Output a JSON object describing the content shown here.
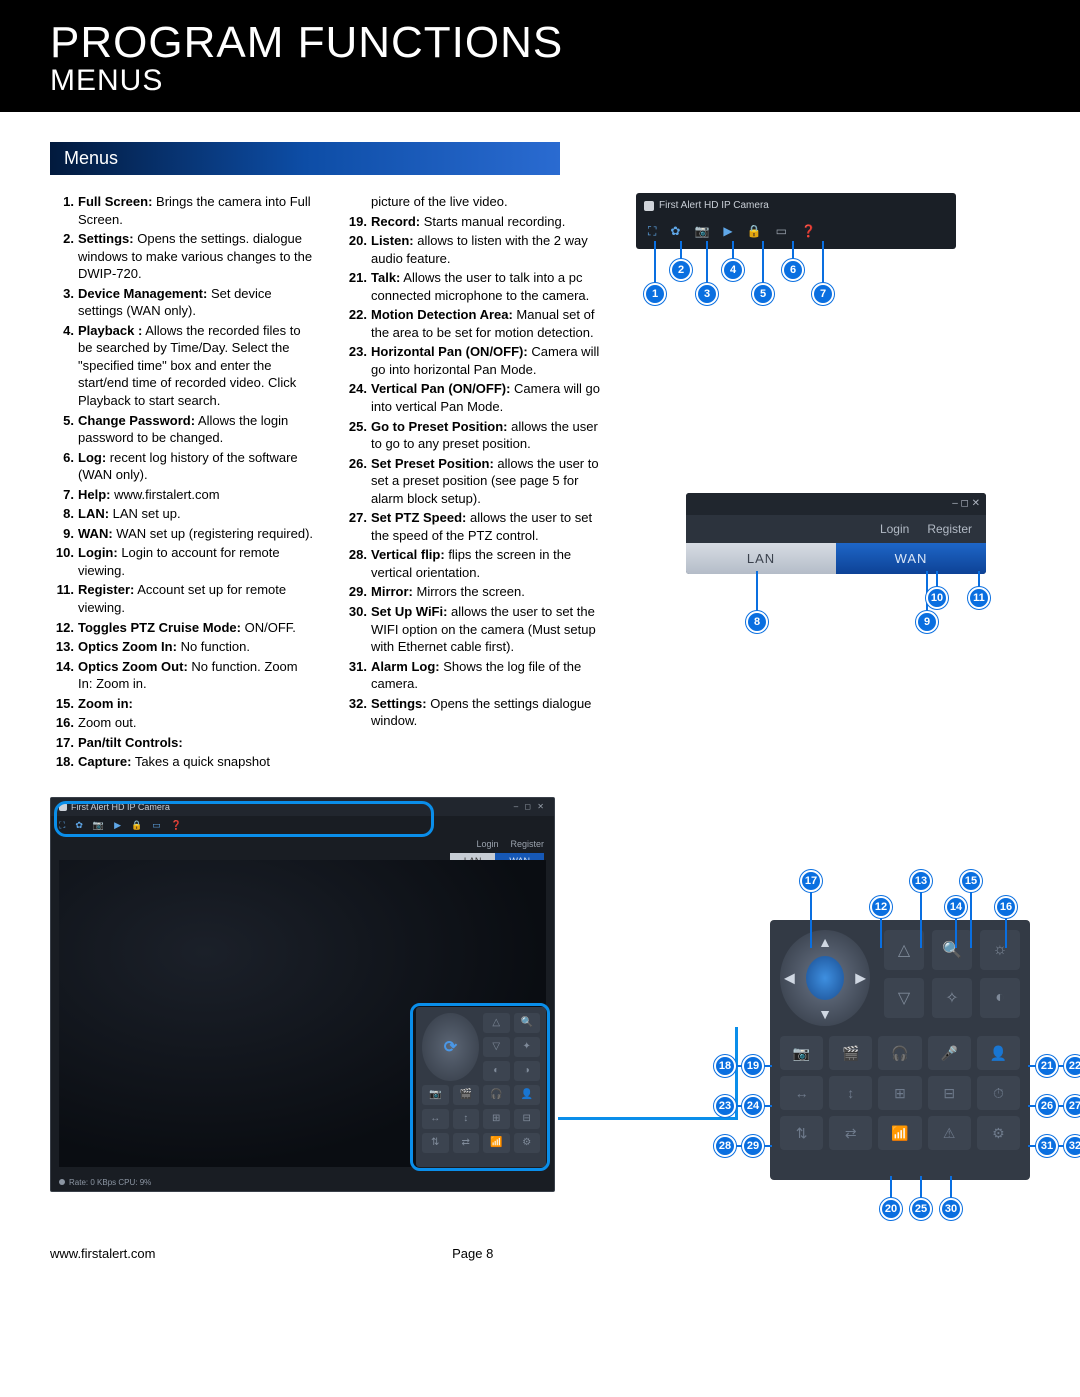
{
  "header": {
    "title": "PROGRAM FUNCTIONS",
    "subtitle": "MENUS"
  },
  "section_band": "Menus",
  "items_col1": [
    {
      "n": "1.",
      "b": "Full Screen:",
      "t": " Brings the camera into Full Screen."
    },
    {
      "n": "2.",
      "b": "Settings:",
      "t": " Opens the settings. dialogue windows to make various changes to the DWIP-720."
    },
    {
      "n": "3.",
      "b": "Device Management:",
      "t": " Set device settings (WAN only)."
    },
    {
      "n": "4.",
      "b": "Playback :",
      "t": " Allows the recorded files to be searched by Time/Day. Select the \"specified time\" box and enter the start/end time of recorded video. Click Playback to start search."
    },
    {
      "n": "5.",
      "b": "Change Password:",
      "t": " Allows the login password to be changed."
    },
    {
      "n": "6.",
      "b": "Log:",
      "t": " recent log history of the software (WAN only)."
    },
    {
      "n": "7.",
      "b": "Help:",
      "t": " www.firstalert.com"
    },
    {
      "n": "8.",
      "b": "LAN:",
      "t": " LAN set up."
    },
    {
      "n": "9.",
      "b": "WAN:",
      "t": " WAN set up (registering required)."
    },
    {
      "n": "10.",
      "b": "Login:",
      "t": " Login to account for remote viewing."
    },
    {
      "n": "11.",
      "b": "Register:",
      "t": " Account set up for remote viewing."
    },
    {
      "n": "12.",
      "b": "Toggles PTZ Cruise Mode:",
      "t": " ON/OFF."
    },
    {
      "n": "13.",
      "b": "Optics Zoom In:",
      "t": " No function."
    },
    {
      "n": "14.",
      "b": "Optics Zoom Out:",
      "t": " No function. Zoom In: Zoom in."
    },
    {
      "n": "15.",
      "b": "Zoom in:",
      "t": ""
    },
    {
      "n": "16.",
      "b": "",
      "t": "Zoom out."
    },
    {
      "n": "17.",
      "b": "Pan/tilt Controls:",
      "t": ""
    },
    {
      "n": "18.",
      "b": "Capture:",
      "t": " Takes a quick snapshot"
    }
  ],
  "items_col2": [
    {
      "n": "",
      "b": "",
      "t": "picture of the live video."
    },
    {
      "n": "19.",
      "b": "Record:",
      "t": " Starts manual recording."
    },
    {
      "n": "20.",
      "b": "Listen:",
      "t": " allows to listen with the 2 way audio feature."
    },
    {
      "n": "21.",
      "b": "Talk:",
      "t": " Allows the user to talk into a pc connected microphone to the camera."
    },
    {
      "n": "22.",
      "b": "Motion Detection Area:",
      "t": " Manual set of the area to be set for motion detection."
    },
    {
      "n": "23.",
      "b": "Horizontal Pan (ON/OFF):",
      "t": " Camera will go into horizontal Pan Mode."
    },
    {
      "n": "24.",
      "b": "Vertical Pan (ON/OFF):",
      "t": " Camera will go into vertical Pan Mode."
    },
    {
      "n": "25.",
      "b": "Go to Preset Position:",
      "t": " allows the user to go to any preset position."
    },
    {
      "n": "26.",
      "b": "Set Preset Position:",
      "t": " allows the user to set a preset position (see page 5 for alarm block setup)."
    },
    {
      "n": "27.",
      "b": "Set PTZ Speed:",
      "t": " allows the user to set the speed of the PTZ control."
    },
    {
      "n": "28.",
      "b": "Vertical flip:",
      "t": " flips the screen in the vertical orientation."
    },
    {
      "n": "29.",
      "b": "Mirror:",
      "t": " Mirrors the screen."
    },
    {
      "n": "30.",
      "b": "Set Up WiFi:",
      "t": " allows the user to set the WIFI option on the camera (Must setup with Ethernet cable first)."
    },
    {
      "n": "31.",
      "b": "Alarm Log:",
      "t": " Shows the log file of the camera."
    },
    {
      "n": "32.",
      "b": "Settings:",
      "t": " Opens the settings dialogue window."
    }
  ],
  "toolbar": {
    "app_title": "First Alert HD IP Camera"
  },
  "lanwan": {
    "login": "Login",
    "register": "Register",
    "lan": "LAN",
    "wan": "WAN",
    "winctl": "– ◻ ✕"
  },
  "app": {
    "title": "First Alert HD IP Camera",
    "login": "Login",
    "register": "Register",
    "lan": "LAN",
    "wan": "WAN",
    "status": "Rate: 0 KBps  CPU:   9%"
  },
  "bubbles_top": [
    "1",
    "2",
    "3",
    "4",
    "5",
    "6",
    "7"
  ],
  "bubbles_lanwan": [
    "8",
    "9",
    "10",
    "11"
  ],
  "bubbles_ctrl_top": [
    "12",
    "13",
    "14",
    "15",
    "16",
    "17"
  ],
  "bubbles_ctrl_left": [
    "18",
    "19",
    "23",
    "24",
    "28",
    "29"
  ],
  "bubbles_ctrl_right": [
    "21",
    "22",
    "26",
    "27",
    "31",
    "32"
  ],
  "bubbles_ctrl_bottom": [
    "20",
    "25",
    "30"
  ],
  "footer": {
    "url": "www.firstalert.com",
    "page": "Page  8"
  },
  "colors": {
    "accent": "#0a6fe0",
    "highlight": "#0a8eea",
    "panel": "#333a45"
  }
}
